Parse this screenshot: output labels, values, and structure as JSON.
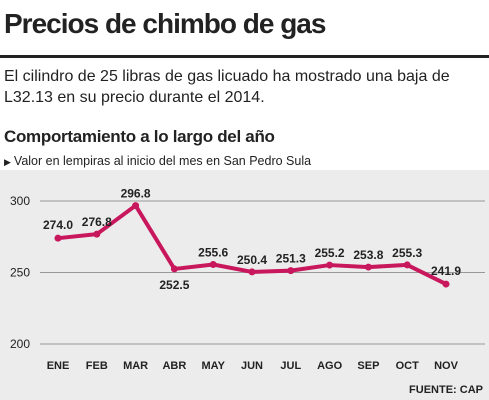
{
  "header": {
    "title": "Precios de chimbo de gas",
    "intro": "El cilindro de 25 libras de gas licuado ha mostrado una baja de L32.13 en su precio durante el 2014."
  },
  "chart_data": {
    "type": "line",
    "title": "Comportamiento a lo largo del año",
    "subtitle": "Valor en lempiras al inicio del mes en San Pedro Sula",
    "categories": [
      "ENE",
      "FEB",
      "MAR",
      "ABR",
      "MAY",
      "JUN",
      "JUL",
      "AGO",
      "SEP",
      "OCT",
      "NOV"
    ],
    "series": [
      {
        "values": [
          274.0,
          276.8,
          296.8,
          252.5,
          255.6,
          250.4,
          251.3,
          255.2,
          253.8,
          255.3,
          241.9
        ],
        "labels": [
          "274.0",
          "276.8",
          "296.8",
          "252.5",
          "255.6",
          "250.4",
          "251.3",
          "255.2",
          "253.8",
          "255.3",
          "241.9"
        ]
      }
    ],
    "ylim": [
      200,
      300
    ],
    "yticks": [
      200,
      250,
      300
    ],
    "grid": true,
    "color": "#c8175c"
  },
  "footer": {
    "source": "FUENTE: CAP"
  }
}
